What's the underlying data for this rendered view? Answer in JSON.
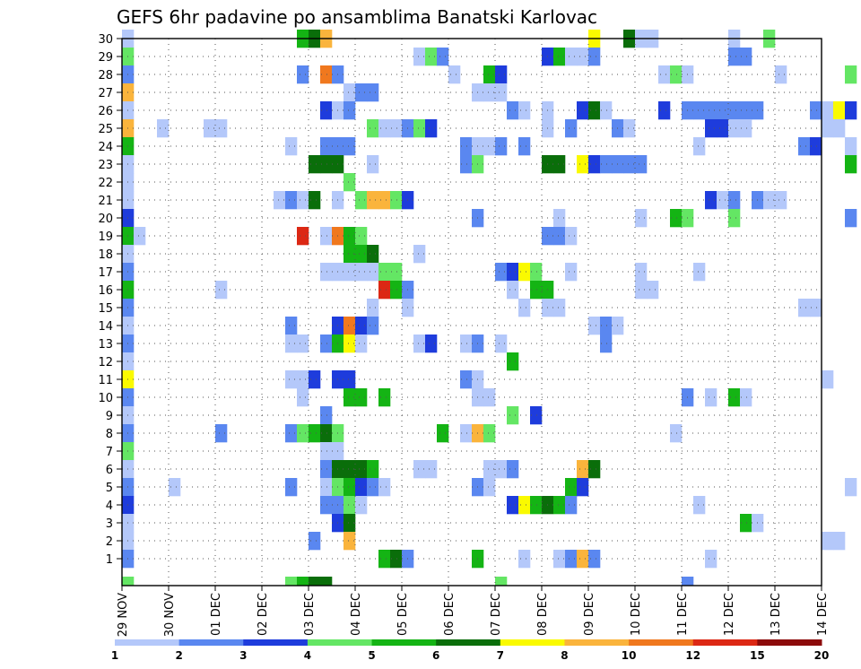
{
  "chart_data": {
    "type": "heatmap",
    "title": "GEFS 6hr padavine po ansamblima Banatski Karlovac",
    "xlabel": "",
    "ylabel": "",
    "x_ticks": [
      "29 NOV",
      "30 NOV",
      "01 DEC",
      "02 DEC",
      "03 DEC",
      "04 DEC",
      "05 DEC",
      "06 DEC",
      "07 DEC",
      "08 DEC",
      "09 DEC",
      "10 DEC",
      "11 DEC",
      "12 DEC",
      "13 DEC",
      "14 DEC"
    ],
    "y_ticks": [
      "1",
      "2",
      "3",
      "4",
      "5",
      "6",
      "7",
      "8",
      "9",
      "10",
      "11",
      "12",
      "13",
      "14",
      "15",
      "16",
      "17",
      "18",
      "19",
      "20",
      "21",
      "22",
      "23",
      "24",
      "25",
      "26",
      "27",
      "28",
      "29",
      "30"
    ],
    "ylim": [
      0,
      30
    ],
    "x_steps": 60,
    "steps_per_day": 4,
    "grid": true,
    "legend": {
      "position": "bottom",
      "colors": [
        "#b4c8fa",
        "#5a87f0",
        "#1e3cdc",
        "#64e664",
        "#14b414",
        "#0a6e0a",
        "#fafa00",
        "#fab43c",
        "#f0781e",
        "#dc2814",
        "#8c0a0a"
      ],
      "labels": [
        "1",
        "2",
        "3",
        "4",
        "5",
        "6",
        "7",
        "8",
        "10",
        "12",
        "15",
        "20"
      ]
    },
    "cells": [
      [
        0,
        30,
        1
      ],
      [
        0,
        29,
        4
      ],
      [
        0,
        28,
        2
      ],
      [
        0,
        27,
        8
      ],
      [
        0,
        26,
        1
      ],
      [
        0,
        25,
        8
      ],
      [
        0,
        24,
        5
      ],
      [
        0,
        23,
        1
      ],
      [
        0,
        22,
        1
      ],
      [
        0,
        21,
        1
      ],
      [
        0,
        20,
        3
      ],
      [
        0,
        19,
        5
      ],
      [
        0,
        18,
        1
      ],
      [
        0,
        17,
        2
      ],
      [
        0,
        16,
        5
      ],
      [
        0,
        15,
        2
      ],
      [
        0,
        14,
        1
      ],
      [
        0,
        13,
        2
      ],
      [
        0,
        12,
        1
      ],
      [
        0,
        11,
        7
      ],
      [
        0,
        10,
        2
      ],
      [
        0,
        9,
        1
      ],
      [
        0,
        8,
        2
      ],
      [
        0,
        7,
        4
      ],
      [
        0,
        6,
        1
      ],
      [
        0,
        5,
        2
      ],
      [
        0,
        4,
        3
      ],
      [
        0,
        3,
        1
      ],
      [
        0,
        2,
        1
      ],
      [
        0,
        1,
        2
      ],
      [
        0,
        0,
        4
      ],
      [
        1,
        19,
        1
      ],
      [
        3,
        25,
        1
      ],
      [
        4,
        5,
        1
      ],
      [
        7,
        25,
        1
      ],
      [
        8,
        25,
        1
      ],
      [
        8,
        16,
        1
      ],
      [
        8,
        8,
        2
      ],
      [
        13,
        21,
        1
      ],
      [
        14,
        24,
        1
      ],
      [
        14,
        21,
        2
      ],
      [
        14,
        14,
        2
      ],
      [
        14,
        13,
        1
      ],
      [
        14,
        11,
        1
      ],
      [
        14,
        8,
        2
      ],
      [
        14,
        5,
        2
      ],
      [
        14,
        0,
        4
      ],
      [
        15,
        30,
        5
      ],
      [
        15,
        28,
        2
      ],
      [
        15,
        21,
        1
      ],
      [
        15,
        19,
        10
      ],
      [
        15,
        13,
        1
      ],
      [
        15,
        11,
        1
      ],
      [
        15,
        10,
        1
      ],
      [
        15,
        8,
        4
      ],
      [
        15,
        0,
        5
      ],
      [
        16,
        30,
        6
      ],
      [
        16,
        23,
        6
      ],
      [
        16,
        21,
        6
      ],
      [
        16,
        11,
        3
      ],
      [
        16,
        8,
        5
      ],
      [
        16,
        2,
        2
      ],
      [
        16,
        0,
        6
      ],
      [
        17,
        30,
        8
      ],
      [
        17,
        28,
        9
      ],
      [
        17,
        26,
        3
      ],
      [
        17,
        24,
        2
      ],
      [
        17,
        23,
        6
      ],
      [
        17,
        19,
        1
      ],
      [
        17,
        17,
        1
      ],
      [
        17,
        13,
        2
      ],
      [
        17,
        9,
        2
      ],
      [
        17,
        8,
        6
      ],
      [
        17,
        7,
        1
      ],
      [
        17,
        6,
        2
      ],
      [
        17,
        5,
        1
      ],
      [
        17,
        4,
        2
      ],
      [
        17,
        0,
        6
      ],
      [
        18,
        28,
        2
      ],
      [
        18,
        26,
        1
      ],
      [
        18,
        24,
        2
      ],
      [
        18,
        23,
        6
      ],
      [
        18,
        21,
        1
      ],
      [
        18,
        19,
        9
      ],
      [
        18,
        17,
        1
      ],
      [
        18,
        14,
        3
      ],
      [
        18,
        13,
        5
      ],
      [
        18,
        11,
        3
      ],
      [
        18,
        8,
        4
      ],
      [
        18,
        7,
        1
      ],
      [
        18,
        6,
        6
      ],
      [
        18,
        5,
        4
      ],
      [
        18,
        4,
        2
      ],
      [
        18,
        3,
        3
      ],
      [
        19,
        27,
        1
      ],
      [
        19,
        26,
        2
      ],
      [
        19,
        24,
        2
      ],
      [
        19,
        22,
        4
      ],
      [
        19,
        19,
        5
      ],
      [
        19,
        18,
        5
      ],
      [
        19,
        17,
        1
      ],
      [
        19,
        14,
        9
      ],
      [
        19,
        13,
        7
      ],
      [
        19,
        11,
        3
      ],
      [
        19,
        10,
        5
      ],
      [
        19,
        6,
        6
      ],
      [
        19,
        5,
        5
      ],
      [
        19,
        4,
        4
      ],
      [
        19,
        3,
        6
      ],
      [
        19,
        2,
        8
      ],
      [
        20,
        27,
        2
      ],
      [
        20,
        21,
        4
      ],
      [
        20,
        19,
        4
      ],
      [
        20,
        18,
        5
      ],
      [
        20,
        17,
        1
      ],
      [
        20,
        14,
        3
      ],
      [
        20,
        13,
        1
      ],
      [
        20,
        10,
        5
      ],
      [
        20,
        6,
        6
      ],
      [
        20,
        5,
        3
      ],
      [
        20,
        4,
        1
      ],
      [
        21,
        27,
        2
      ],
      [
        21,
        25,
        4
      ],
      [
        21,
        23,
        1
      ],
      [
        21,
        21,
        8
      ],
      [
        21,
        18,
        6
      ],
      [
        21,
        17,
        1
      ],
      [
        21,
        15,
        1
      ],
      [
        21,
        14,
        2
      ],
      [
        21,
        6,
        5
      ],
      [
        21,
        5,
        2
      ],
      [
        22,
        25,
        1
      ],
      [
        22,
        21,
        8
      ],
      [
        22,
        17,
        4
      ],
      [
        22,
        16,
        10
      ],
      [
        22,
        10,
        5
      ],
      [
        22,
        5,
        1
      ],
      [
        22,
        1,
        5
      ],
      [
        23,
        25,
        1
      ],
      [
        23,
        21,
        4
      ],
      [
        23,
        17,
        4
      ],
      [
        23,
        16,
        5
      ],
      [
        23,
        1,
        6
      ],
      [
        24,
        25,
        2
      ],
      [
        24,
        21,
        3
      ],
      [
        24,
        16,
        2
      ],
      [
        24,
        15,
        1
      ],
      [
        24,
        1,
        2
      ],
      [
        25,
        29,
        1
      ],
      [
        25,
        25,
        4
      ],
      [
        25,
        18,
        1
      ],
      [
        25,
        13,
        1
      ],
      [
        25,
        6,
        1
      ],
      [
        26,
        29,
        4
      ],
      [
        26,
        25,
        3
      ],
      [
        26,
        13,
        3
      ],
      [
        26,
        6,
        1
      ],
      [
        27,
        29,
        2
      ],
      [
        27,
        8,
        5
      ],
      [
        28,
        28,
        1
      ],
      [
        29,
        24,
        2
      ],
      [
        29,
        23,
        2
      ],
      [
        29,
        13,
        1
      ],
      [
        29,
        11,
        2
      ],
      [
        29,
        8,
        1
      ],
      [
        30,
        27,
        1
      ],
      [
        30,
        24,
        1
      ],
      [
        30,
        23,
        4
      ],
      [
        30,
        20,
        2
      ],
      [
        30,
        13,
        2
      ],
      [
        30,
        11,
        1
      ],
      [
        30,
        10,
        1
      ],
      [
        30,
        8,
        8
      ],
      [
        30,
        5,
        2
      ],
      [
        30,
        1,
        5
      ],
      [
        31,
        28,
        5
      ],
      [
        31,
        27,
        1
      ],
      [
        31,
        24,
        1
      ],
      [
        31,
        10,
        1
      ],
      [
        31,
        8,
        4
      ],
      [
        31,
        6,
        1
      ],
      [
        31,
        5,
        1
      ],
      [
        32,
        28,
        3
      ],
      [
        32,
        27,
        1
      ],
      [
        32,
        24,
        2
      ],
      [
        32,
        17,
        2
      ],
      [
        32,
        13,
        1
      ],
      [
        32,
        6,
        1
      ],
      [
        32,
        0,
        4
      ],
      [
        33,
        26,
        2
      ],
      [
        33,
        17,
        3
      ],
      [
        33,
        16,
        1
      ],
      [
        33,
        12,
        5
      ],
      [
        33,
        9,
        4
      ],
      [
        33,
        6,
        2
      ],
      [
        33,
        4,
        3
      ],
      [
        34,
        26,
        1
      ],
      [
        34,
        24,
        2
      ],
      [
        34,
        17,
        7
      ],
      [
        34,
        15,
        1
      ],
      [
        34,
        4,
        7
      ],
      [
        34,
        1,
        1
      ],
      [
        35,
        17,
        4
      ],
      [
        35,
        16,
        5
      ],
      [
        35,
        9,
        3
      ],
      [
        35,
        4,
        5
      ],
      [
        36,
        29,
        3
      ],
      [
        36,
        26,
        1
      ],
      [
        36,
        25,
        1
      ],
      [
        36,
        23,
        6
      ],
      [
        36,
        19,
        2
      ],
      [
        36,
        16,
        5
      ],
      [
        36,
        15,
        1
      ],
      [
        36,
        4,
        6
      ],
      [
        37,
        29,
        5
      ],
      [
        37,
        23,
        6
      ],
      [
        37,
        20,
        1
      ],
      [
        37,
        19,
        2
      ],
      [
        37,
        15,
        1
      ],
      [
        37,
        4,
        5
      ],
      [
        37,
        1,
        1
      ],
      [
        38,
        29,
        1
      ],
      [
        38,
        25,
        2
      ],
      [
        38,
        19,
        1
      ],
      [
        38,
        17,
        1
      ],
      [
        38,
        5,
        5
      ],
      [
        38,
        4,
        2
      ],
      [
        38,
        1,
        2
      ],
      [
        39,
        29,
        1
      ],
      [
        39,
        26,
        3
      ],
      [
        39,
        23,
        7
      ],
      [
        39,
        6,
        8
      ],
      [
        39,
        5,
        3
      ],
      [
        39,
        1,
        8
      ],
      [
        40,
        30,
        7
      ],
      [
        40,
        29,
        2
      ],
      [
        40,
        26,
        6
      ],
      [
        40,
        23,
        3
      ],
      [
        40,
        14,
        1
      ],
      [
        40,
        6,
        6
      ],
      [
        40,
        1,
        2
      ],
      [
        41,
        26,
        1
      ],
      [
        41,
        23,
        2
      ],
      [
        41,
        14,
        2
      ],
      [
        41,
        13,
        2
      ],
      [
        42,
        25,
        2
      ],
      [
        42,
        23,
        2
      ],
      [
        42,
        14,
        1
      ],
      [
        43,
        30,
        6
      ],
      [
        43,
        25,
        1
      ],
      [
        43,
        23,
        2
      ],
      [
        44,
        30,
        1
      ],
      [
        44,
        23,
        2
      ],
      [
        44,
        20,
        1
      ],
      [
        44,
        17,
        1
      ],
      [
        44,
        16,
        1
      ],
      [
        45,
        30,
        1
      ],
      [
        45,
        16,
        1
      ],
      [
        46,
        28,
        1
      ],
      [
        46,
        26,
        3
      ],
      [
        47,
        28,
        4
      ],
      [
        47,
        20,
        5
      ],
      [
        47,
        8,
        1
      ],
      [
        48,
        28,
        1
      ],
      [
        48,
        26,
        2
      ],
      [
        48,
        20,
        4
      ],
      [
        48,
        10,
        2
      ],
      [
        48,
        0,
        2
      ],
      [
        49,
        26,
        2
      ],
      [
        49,
        24,
        1
      ],
      [
        49,
        17,
        1
      ],
      [
        49,
        4,
        1
      ],
      [
        50,
        26,
        2
      ],
      [
        50,
        25,
        3
      ],
      [
        50,
        21,
        3
      ],
      [
        50,
        10,
        1
      ],
      [
        50,
        1,
        1
      ],
      [
        51,
        26,
        2
      ],
      [
        51,
        25,
        3
      ],
      [
        51,
        21,
        1
      ],
      [
        52,
        30,
        1
      ],
      [
        52,
        29,
        2
      ],
      [
        52,
        26,
        2
      ],
      [
        52,
        25,
        1
      ],
      [
        52,
        21,
        2
      ],
      [
        52,
        20,
        4
      ],
      [
        52,
        10,
        5
      ],
      [
        53,
        29,
        2
      ],
      [
        53,
        26,
        2
      ],
      [
        53,
        25,
        1
      ],
      [
        53,
        10,
        1
      ],
      [
        53,
        3,
        5
      ],
      [
        54,
        26,
        2
      ],
      [
        54,
        21,
        2
      ],
      [
        54,
        3,
        1
      ],
      [
        55,
        30,
        4
      ],
      [
        55,
        21,
        1
      ],
      [
        56,
        28,
        1
      ],
      [
        56,
        21,
        1
      ],
      [
        58,
        24,
        2
      ],
      [
        58,
        15,
        1
      ],
      [
        59,
        26,
        2
      ],
      [
        59,
        24,
        3
      ],
      [
        59,
        15,
        1
      ],
      [
        60,
        26,
        1
      ],
      [
        60,
        25,
        1
      ],
      [
        60,
        11,
        1
      ],
      [
        60,
        2,
        1
      ],
      [
        61,
        26,
        7
      ],
      [
        61,
        25,
        1
      ],
      [
        61,
        2,
        1
      ],
      [
        62,
        28,
        4
      ],
      [
        62,
        26,
        3
      ],
      [
        62,
        24,
        1
      ],
      [
        62,
        23,
        5
      ],
      [
        62,
        20,
        2
      ],
      [
        62,
        5,
        1
      ]
    ]
  }
}
